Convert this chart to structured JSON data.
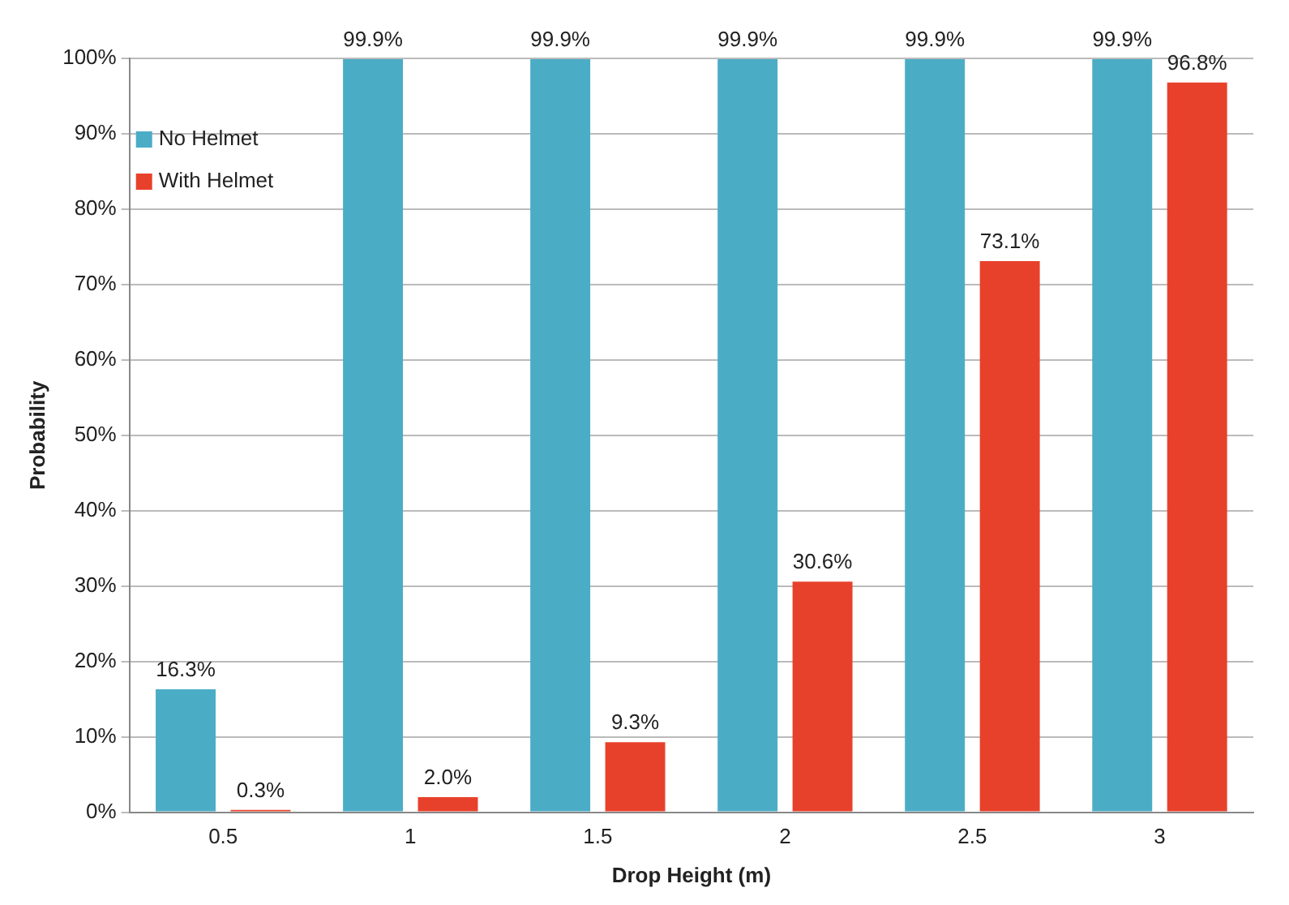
{
  "chart_data": {
    "type": "bar",
    "xlabel": "Drop Height (m)",
    "ylabel": "Probability",
    "categories": [
      "0.5",
      "1",
      "1.5",
      "2",
      "2.5",
      "3"
    ],
    "series": [
      {
        "name": "No Helmet",
        "color": "#4bacc6",
        "values": [
          16.3,
          99.9,
          99.9,
          99.9,
          99.9,
          99.9
        ],
        "value_labels": [
          "16.3%",
          "99.9%",
          "99.9%",
          "99.9%",
          "99.9%",
          "99.9%"
        ]
      },
      {
        "name": "With Helmet",
        "color": "#e8412b",
        "values": [
          0.3,
          2.0,
          9.3,
          30.6,
          73.1,
          96.8
        ],
        "value_labels": [
          "0.3%",
          "2.0%",
          "9.3%",
          "30.6%",
          "73.1%",
          "96.8%"
        ]
      }
    ],
    "ylim": [
      0,
      100
    ],
    "yticks": [
      {
        "value": 0,
        "label": "0%"
      },
      {
        "value": 10,
        "label": "10%"
      },
      {
        "value": 20,
        "label": "20%"
      },
      {
        "value": 30,
        "label": "30%"
      },
      {
        "value": 40,
        "label": "40%"
      },
      {
        "value": 50,
        "label": "50%"
      },
      {
        "value": 60,
        "label": "60%"
      },
      {
        "value": 70,
        "label": "70%"
      },
      {
        "value": 80,
        "label": "80%"
      },
      {
        "value": 90,
        "label": "90%"
      },
      {
        "value": 100,
        "label": "100%"
      }
    ],
    "grid": "y",
    "legend": "top left"
  }
}
